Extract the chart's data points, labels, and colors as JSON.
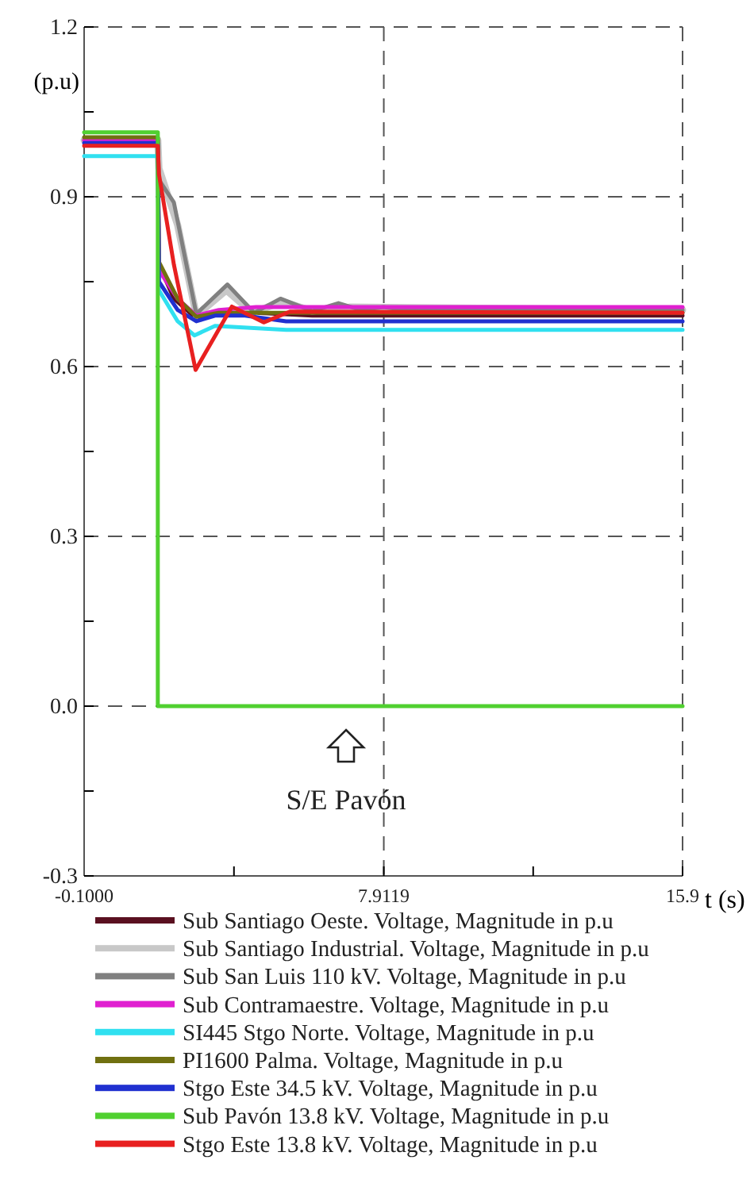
{
  "chart_data": {
    "type": "line",
    "xlabel": "t (s)",
    "ylabel": "(p.u)",
    "xlim": [
      -0.1,
      15.9
    ],
    "xticks": [
      {
        "value": -0.1,
        "label": "-0.1000"
      },
      {
        "value": 3.9059,
        "label": null
      },
      {
        "value": 7.9119,
        "label": "7.9119"
      },
      {
        "value": 11.9059,
        "label": null
      },
      {
        "value": 15.9,
        "label": "15.9"
      }
    ],
    "ylim": [
      -0.3,
      1.2
    ],
    "yticks": [
      {
        "value": -0.3,
        "label": "-0.3"
      },
      {
        "value": -0.15,
        "label": null
      },
      {
        "value": 0,
        "label": "0.0"
      },
      {
        "value": 0.15,
        "label": null
      },
      {
        "value": 0.3,
        "label": "0.3"
      },
      {
        "value": 0.45,
        "label": null
      },
      {
        "value": 0.6,
        "label": "0.6"
      },
      {
        "value": 0.75,
        "label": null
      },
      {
        "value": 0.9,
        "label": "0.9"
      },
      {
        "value": 1.05,
        "label": null
      },
      {
        "value": 1.2,
        "label": "1.2"
      }
    ],
    "grid": true,
    "legend": "bottom",
    "line_style": "solid",
    "marker": "none",
    "annotations": [
      "S/E Pavón"
    ],
    "series": [
      {
        "name": "Sub Santiago Oeste. Voltage, Magnitude in p.u",
        "color": "#5a1020",
        "x": [
          -0.1,
          1.87,
          1.9,
          2.3,
          2.9,
          3.5,
          4.5,
          6,
          10,
          15.9
        ],
        "values": [
          0.997,
          0.997,
          0.78,
          0.72,
          0.685,
          0.693,
          0.695,
          0.69,
          0.69,
          0.69
        ]
      },
      {
        "name": "Sub Santiago Industrial. Voltage, Magnitude in p.u",
        "color": "#c8c8c8",
        "x": [
          -0.1,
          1.87,
          1.9,
          2.4,
          2.9,
          3.7,
          4.4,
          5.2,
          6,
          7,
          15.9
        ],
        "values": [
          1.0,
          1.0,
          0.95,
          0.85,
          0.69,
          0.735,
          0.695,
          0.715,
          0.698,
          0.705,
          0.7
        ]
      },
      {
        "name": "Sub San Luis 110 kV. Voltage, Magnitude in p.u",
        "color": "#808080",
        "x": [
          -0.1,
          1.87,
          1.9,
          2.3,
          2.9,
          3.73,
          4.45,
          5.15,
          6,
          6.7,
          7.3,
          7.9,
          8.5,
          15.9
        ],
        "values": [
          1.0,
          1.0,
          0.93,
          0.89,
          0.693,
          0.745,
          0.695,
          0.72,
          0.698,
          0.712,
          0.7,
          0.705,
          0.7,
          0.7
        ]
      },
      {
        "name": "Sub Contramaestre. Voltage, Magnitude in p.u",
        "color": "#e020d0",
        "x": [
          -0.1,
          1.87,
          1.9,
          2.4,
          2.9,
          3.5,
          4.5,
          15.9
        ],
        "values": [
          1.0,
          1.0,
          0.77,
          0.72,
          0.69,
          0.7,
          0.705,
          0.705
        ]
      },
      {
        "name": "SI445 Stgo Norte. Voltage, Magnitude in p.u",
        "color": "#30e0f0",
        "x": [
          -0.1,
          1.87,
          1.9,
          2.4,
          2.85,
          3.4,
          5.3,
          15.9
        ],
        "values": [
          0.972,
          0.972,
          0.735,
          0.68,
          0.655,
          0.672,
          0.665,
          0.665
        ]
      },
      {
        "name": "PI1600 Palma. Voltage, Magnitude in p.u",
        "color": "#707010",
        "x": [
          -0.1,
          1.87,
          1.9,
          2.4,
          2.9,
          3.5,
          15.9
        ],
        "values": [
          1.005,
          1.005,
          0.785,
          0.72,
          0.688,
          0.695,
          0.695
        ]
      },
      {
        "name": "Stgo Este 34.5 kV. Voltage, Magnitude in p.u",
        "color": "#2030d0",
        "x": [
          -0.1,
          1.87,
          1.9,
          2.4,
          2.9,
          3.4,
          4.2,
          5.3,
          15.9
        ],
        "values": [
          0.995,
          0.995,
          0.75,
          0.7,
          0.68,
          0.69,
          0.69,
          0.68,
          0.68
        ]
      },
      {
        "name": "Sub Pavón 13.8 kV. Voltage, Magnitude in p.u",
        "color": "#50d030",
        "x": [
          -0.1,
          1.87,
          1.87,
          15.9
        ],
        "values": [
          1.014,
          1.014,
          0,
          0
        ]
      },
      {
        "name": "Stgo Este 13.8 kV. Voltage, Magnitude in p.u",
        "color": "#e82020",
        "x": [
          -0.1,
          1.87,
          1.9,
          2.3,
          2.88,
          3.85,
          4.7,
          5.4,
          15.9
        ],
        "values": [
          0.99,
          0.99,
          0.94,
          0.78,
          0.594,
          0.706,
          0.678,
          0.697,
          0.695
        ]
      }
    ]
  }
}
